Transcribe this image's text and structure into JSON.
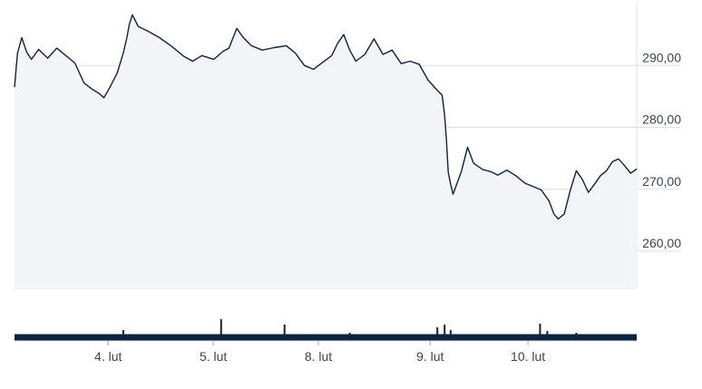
{
  "chart_data": {
    "type": "area",
    "title": "",
    "xlabel": "",
    "ylabel": "",
    "grid": true,
    "legend": "none",
    "y_axis_position": "right",
    "ylim": [
      254,
      300
    ],
    "xlim": [
      0,
      1
    ],
    "y_ticks": [
      260,
      270,
      280,
      290
    ],
    "y_tick_labels": [
      "260,00",
      "270,00",
      "280,00",
      "290,00"
    ],
    "x_ticks": [
      0.155,
      0.329,
      0.503,
      0.688,
      0.85
    ],
    "x_tick_labels": [
      "4. lut",
      "5. lut",
      "8. lut",
      "9. lut",
      "10. lut"
    ],
    "colors": {
      "line": "#0e2340",
      "area": "#f3f4f7",
      "grid": "#dcdfe4",
      "volume": "#0e2340",
      "axis_text": "#3b4451"
    },
    "series": [
      {
        "values": [
          [
            0.0,
            286.5
          ],
          [
            0.005,
            292.0
          ],
          [
            0.012,
            294.5
          ],
          [
            0.02,
            292.2
          ],
          [
            0.028,
            291.0
          ],
          [
            0.04,
            292.6
          ],
          [
            0.055,
            291.2
          ],
          [
            0.07,
            292.8
          ],
          [
            0.085,
            291.6
          ],
          [
            0.1,
            290.4
          ],
          [
            0.115,
            287.2
          ],
          [
            0.128,
            286.2
          ],
          [
            0.14,
            285.5
          ],
          [
            0.148,
            284.8
          ],
          [
            0.158,
            286.5
          ],
          [
            0.17,
            288.8
          ],
          [
            0.18,
            292.0
          ],
          [
            0.186,
            294.5
          ],
          [
            0.19,
            296.6
          ],
          [
            0.195,
            298.2
          ],
          [
            0.205,
            296.3
          ],
          [
            0.22,
            295.6
          ],
          [
            0.24,
            294.5
          ],
          [
            0.26,
            293.1
          ],
          [
            0.28,
            291.5
          ],
          [
            0.295,
            290.7
          ],
          [
            0.31,
            291.6
          ],
          [
            0.33,
            291.0
          ],
          [
            0.345,
            292.3
          ],
          [
            0.355,
            292.8
          ],
          [
            0.368,
            296.0
          ],
          [
            0.378,
            294.6
          ],
          [
            0.392,
            293.2
          ],
          [
            0.41,
            292.5
          ],
          [
            0.43,
            292.9
          ],
          [
            0.45,
            293.2
          ],
          [
            0.465,
            292.0
          ],
          [
            0.48,
            290.0
          ],
          [
            0.495,
            289.4
          ],
          [
            0.51,
            290.5
          ],
          [
            0.525,
            291.6
          ],
          [
            0.535,
            293.6
          ],
          [
            0.545,
            295.0
          ],
          [
            0.555,
            292.5
          ],
          [
            0.565,
            290.7
          ],
          [
            0.58,
            291.8
          ],
          [
            0.595,
            294.3
          ],
          [
            0.61,
            291.8
          ],
          [
            0.625,
            292.5
          ],
          [
            0.64,
            290.3
          ],
          [
            0.655,
            290.7
          ],
          [
            0.67,
            290.2
          ],
          [
            0.685,
            287.6
          ],
          [
            0.7,
            286.0
          ],
          [
            0.708,
            285.2
          ],
          [
            0.712,
            282.0
          ],
          [
            0.715,
            278.0
          ],
          [
            0.718,
            272.8
          ],
          [
            0.722,
            270.8
          ],
          [
            0.726,
            269.2
          ],
          [
            0.732,
            270.8
          ],
          [
            0.74,
            273.0
          ],
          [
            0.75,
            276.8
          ],
          [
            0.76,
            274.2
          ],
          [
            0.775,
            273.2
          ],
          [
            0.79,
            272.8
          ],
          [
            0.8,
            272.3
          ],
          [
            0.815,
            273.1
          ],
          [
            0.83,
            272.2
          ],
          [
            0.845,
            271.0
          ],
          [
            0.86,
            270.4
          ],
          [
            0.872,
            269.9
          ],
          [
            0.885,
            268.1
          ],
          [
            0.893,
            266.0
          ],
          [
            0.9,
            265.2
          ],
          [
            0.91,
            266.0
          ],
          [
            0.92,
            269.8
          ],
          [
            0.93,
            273.0
          ],
          [
            0.94,
            271.6
          ],
          [
            0.95,
            269.5
          ],
          [
            0.96,
            270.8
          ],
          [
            0.97,
            272.2
          ],
          [
            0.98,
            273.0
          ],
          [
            0.99,
            274.5
          ],
          [
            1.0,
            274.9
          ],
          [
            1.01,
            273.8
          ],
          [
            1.02,
            272.6
          ],
          [
            1.03,
            273.3
          ]
        ]
      }
    ],
    "volume": {
      "base_fraction": 0.55,
      "spikes": [
        [
          0.18,
          1.0
        ],
        [
          0.342,
          2.2
        ],
        [
          0.447,
          1.6
        ],
        [
          0.555,
          0.7
        ],
        [
          0.7,
          1.3
        ],
        [
          0.712,
          1.6
        ],
        [
          0.722,
          1.0
        ],
        [
          0.87,
          1.7
        ],
        [
          0.882,
          0.9
        ],
        [
          0.93,
          0.7
        ]
      ]
    }
  }
}
